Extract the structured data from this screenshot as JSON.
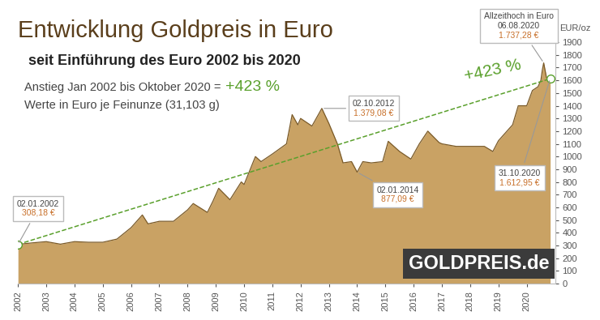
{
  "chart_data": {
    "type": "area",
    "title": "Entwicklung Goldpreis in Euro",
    "subtitle": "seit Einführung des Euro 2002 bis 2020",
    "notes": [
      {
        "text": "Anstieg Jan 2002 bis Oktober 2020 =",
        "highlight": "+423 %"
      },
      {
        "text": "Werte in Euro je Feinunze (31,103 g)"
      }
    ],
    "y_label": "EUR/oz",
    "logo": "GOLDPREIS.de",
    "series": [
      {
        "type": "area",
        "color": "#c9a264",
        "x": [
          2002.0,
          2002.5,
          2003.0,
          2003.5,
          2004.0,
          2004.5,
          2005.0,
          2005.5,
          2006.0,
          2006.4,
          2006.6,
          2007.0,
          2007.5,
          2008.0,
          2008.2,
          2008.7,
          2008.9,
          2009.1,
          2009.5,
          2009.9,
          2010.0,
          2010.4,
          2010.6,
          2011.0,
          2011.5,
          2011.7,
          2011.9,
          2012.0,
          2012.4,
          2012.75,
          2013.0,
          2013.3,
          2013.5,
          2013.8,
          2014.0,
          2014.2,
          2014.5,
          2014.9,
          2015.1,
          2015.5,
          2015.9,
          2016.2,
          2016.5,
          2016.9,
          2017.0,
          2017.5,
          2017.8,
          2018.0,
          2018.5,
          2018.8,
          2019.0,
          2019.5,
          2019.7,
          2020.0,
          2020.2,
          2020.4,
          2020.5,
          2020.55,
          2020.6,
          2020.7,
          2020.83
        ],
        "values": [
          308.18,
          320,
          330,
          310,
          330,
          325,
          325,
          350,
          440,
          540,
          470,
          490,
          490,
          580,
          630,
          560,
          650,
          750,
          660,
          800,
          780,
          1000,
          960,
          1020,
          1100,
          1330,
          1250,
          1300,
          1240,
          1379.08,
          1260,
          1100,
          950,
          960,
          877.09,
          960,
          950,
          960,
          1120,
          1040,
          980,
          1100,
          1200,
          1110,
          1100,
          1080,
          1080,
          1080,
          1080,
          1040,
          1125,
          1250,
          1400,
          1400,
          1520,
          1550,
          1600,
          1680,
          1737.28,
          1620,
          1612.95
        ]
      },
      {
        "type": "line",
        "color": "#5aa02c",
        "line_style": "dashed",
        "marker": "o",
        "x": [
          2002.0,
          2020.83
        ],
        "values": [
          308.18,
          1612.95
        ],
        "annotation": "+423 %"
      }
    ],
    "annotations": [
      {
        "date": "02.01.2002",
        "value_label": "308,18 €",
        "x": 2002.0,
        "y": 308.18
      },
      {
        "date": "02.10.2012",
        "value_label": "1.379,08 €",
        "x": 2012.75,
        "y": 1379.08
      },
      {
        "date": "02.01.2014",
        "value_label": "877,09 €",
        "x": 2014.0,
        "y": 877.09
      },
      {
        "title": "Allzeithoch in Euro",
        "date": "06.08.2020",
        "value_label": "1.737,28 €",
        "x": 2020.6,
        "y": 1737.28
      },
      {
        "date": "31.10.2020",
        "value_label": "1.612,95 €",
        "x": 2020.83,
        "y": 1612.95
      }
    ],
    "xlim": [
      2002,
      2021
    ],
    "xticks": [
      2002,
      2003,
      2004,
      2005,
      2006,
      2007,
      2008,
      2009,
      2010,
      2011,
      2012,
      2013,
      2014,
      2015,
      2016,
      2017,
      2018,
      2019,
      2020
    ],
    "ylim": [
      0,
      1900
    ],
    "yticks": [
      0,
      100,
      200,
      300,
      400,
      500,
      600,
      700,
      800,
      900,
      1000,
      1100,
      1200,
      1300,
      1400,
      1500,
      1600,
      1700,
      1800,
      1900
    ],
    "grid": false
  }
}
